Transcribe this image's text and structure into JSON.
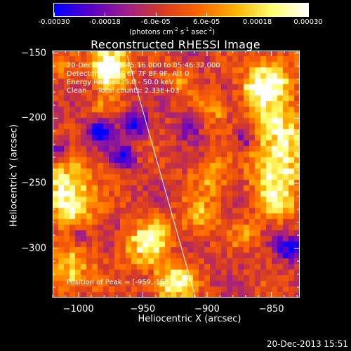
{
  "colorbar": {
    "min": -0.0003,
    "max": 0.0003,
    "tick_labels": [
      "-0.00030",
      "-0.00018",
      "-6.0e-05",
      "6.0e-05",
      "0.00018",
      "0.00030"
    ],
    "tick_values": [
      -0.0003,
      -0.00018,
      -6e-05,
      6e-05,
      0.00018,
      0.0003
    ],
    "units_main": "(photons cm",
    "units_exp1": "-2",
    "units_s": " s",
    "units_exp2": "-1",
    "units_asec": " asec",
    "units_exp3": "-2",
    "units_close": ")",
    "colormap": [
      "#0000ff",
      "#5a00cc",
      "#a01f8a",
      "#d83c24",
      "#ff6600",
      "#ffb300",
      "#ffff70",
      "#ffffff"
    ]
  },
  "chart_data": {
    "type": "heatmap",
    "title": "Reconstructed RHESSI Image",
    "xlabel": "Heliocentric X (arcsec)",
    "ylabel": "Heliocentric Y (arcsec)",
    "xlim": [
      -1020,
      -828
    ],
    "ylim": [
      -338,
      -148
    ],
    "x_ticks": [
      -1000,
      -950,
      -900,
      -850
    ],
    "y_ticks": [
      -150,
      -200,
      -250,
      -300
    ],
    "x_tick_labels": [
      "−1000",
      "−950",
      "−900",
      "−850"
    ],
    "y_tick_labels": [
      "−150",
      "−200",
      "−250",
      "−300"
    ],
    "limb_line": [
      [
        -962,
        -152
      ],
      [
        -909,
        -338
      ]
    ],
    "peak": [
      -959,
      -158
    ],
    "hot_spots": [
      {
        "x": -975,
        "y": -155,
        "r": 10,
        "v": 0.0003
      },
      {
        "x": -975,
        "y": -165,
        "r": 8,
        "v": 0.00028
      },
      {
        "x": -850,
        "y": -170,
        "r": 12,
        "v": 0.00026
      },
      {
        "x": -860,
        "y": -180,
        "r": 10,
        "v": 0.0002
      },
      {
        "x": -845,
        "y": -210,
        "r": 14,
        "v": 0.00028
      },
      {
        "x": -845,
        "y": -240,
        "r": 14,
        "v": 0.00026
      },
      {
        "x": -845,
        "y": -265,
        "r": 10,
        "v": 0.0002
      },
      {
        "x": -1010,
        "y": -250,
        "r": 14,
        "v": 0.00026
      },
      {
        "x": -1005,
        "y": -270,
        "r": 12,
        "v": 0.0002
      },
      {
        "x": -950,
        "y": -300,
        "r": 12,
        "v": 0.00018
      },
      {
        "x": -940,
        "y": -290,
        "r": 10,
        "v": 0.00016
      },
      {
        "x": -1005,
        "y": -318,
        "r": 12,
        "v": 0.00022
      },
      {
        "x": -930,
        "y": -330,
        "r": 10,
        "v": 0.00022
      },
      {
        "x": -920,
        "y": -325,
        "r": 8,
        "v": 0.00018
      },
      {
        "x": -895,
        "y": -245,
        "r": 10,
        "v": 0.00016
      },
      {
        "x": -905,
        "y": -275,
        "r": 10,
        "v": 0.00016
      },
      {
        "x": -895,
        "y": -195,
        "r": 8,
        "v": 0.00014
      },
      {
        "x": -920,
        "y": -170,
        "r": 8,
        "v": 0.00012
      },
      {
        "x": -985,
        "y": -195,
        "r": 8,
        "v": 0.00012
      },
      {
        "x": -870,
        "y": -290,
        "r": 8,
        "v": 0.00012
      },
      {
        "x": -1012,
        "y": -160,
        "r": 6,
        "v": 0.00012
      }
    ],
    "cold_spots": [
      {
        "x": -985,
        "y": -210,
        "r": 8,
        "v": -0.0003
      },
      {
        "x": -955,
        "y": -205,
        "r": 7,
        "v": -0.00026
      },
      {
        "x": -965,
        "y": -230,
        "r": 6,
        "v": -0.00024
      },
      {
        "x": -870,
        "y": -215,
        "r": 6,
        "v": -0.0002
      },
      {
        "x": -835,
        "y": -300,
        "r": 7,
        "v": -0.00024
      },
      {
        "x": -1015,
        "y": -225,
        "r": 6,
        "v": -0.0002
      },
      {
        "x": -915,
        "y": -205,
        "r": 6,
        "v": -0.00018
      },
      {
        "x": -1000,
        "y": -290,
        "r": 6,
        "v": -0.00016
      }
    ],
    "grid": false
  },
  "annotations": {
    "time_range": "20-Dec-2013 05:45:16.000 to 05:46:32.000",
    "detectors": "Detectors: 3F 5F 6F 7F 8F 9F, Att 0",
    "energy": "Energy Range: 25.0 - 50.0 keV",
    "clean": "Clean     Total counts: 2.33E+03",
    "peak": "Position of Peak = [-959,-158]"
  },
  "timestamp": "20-Dec-2013 15:51"
}
